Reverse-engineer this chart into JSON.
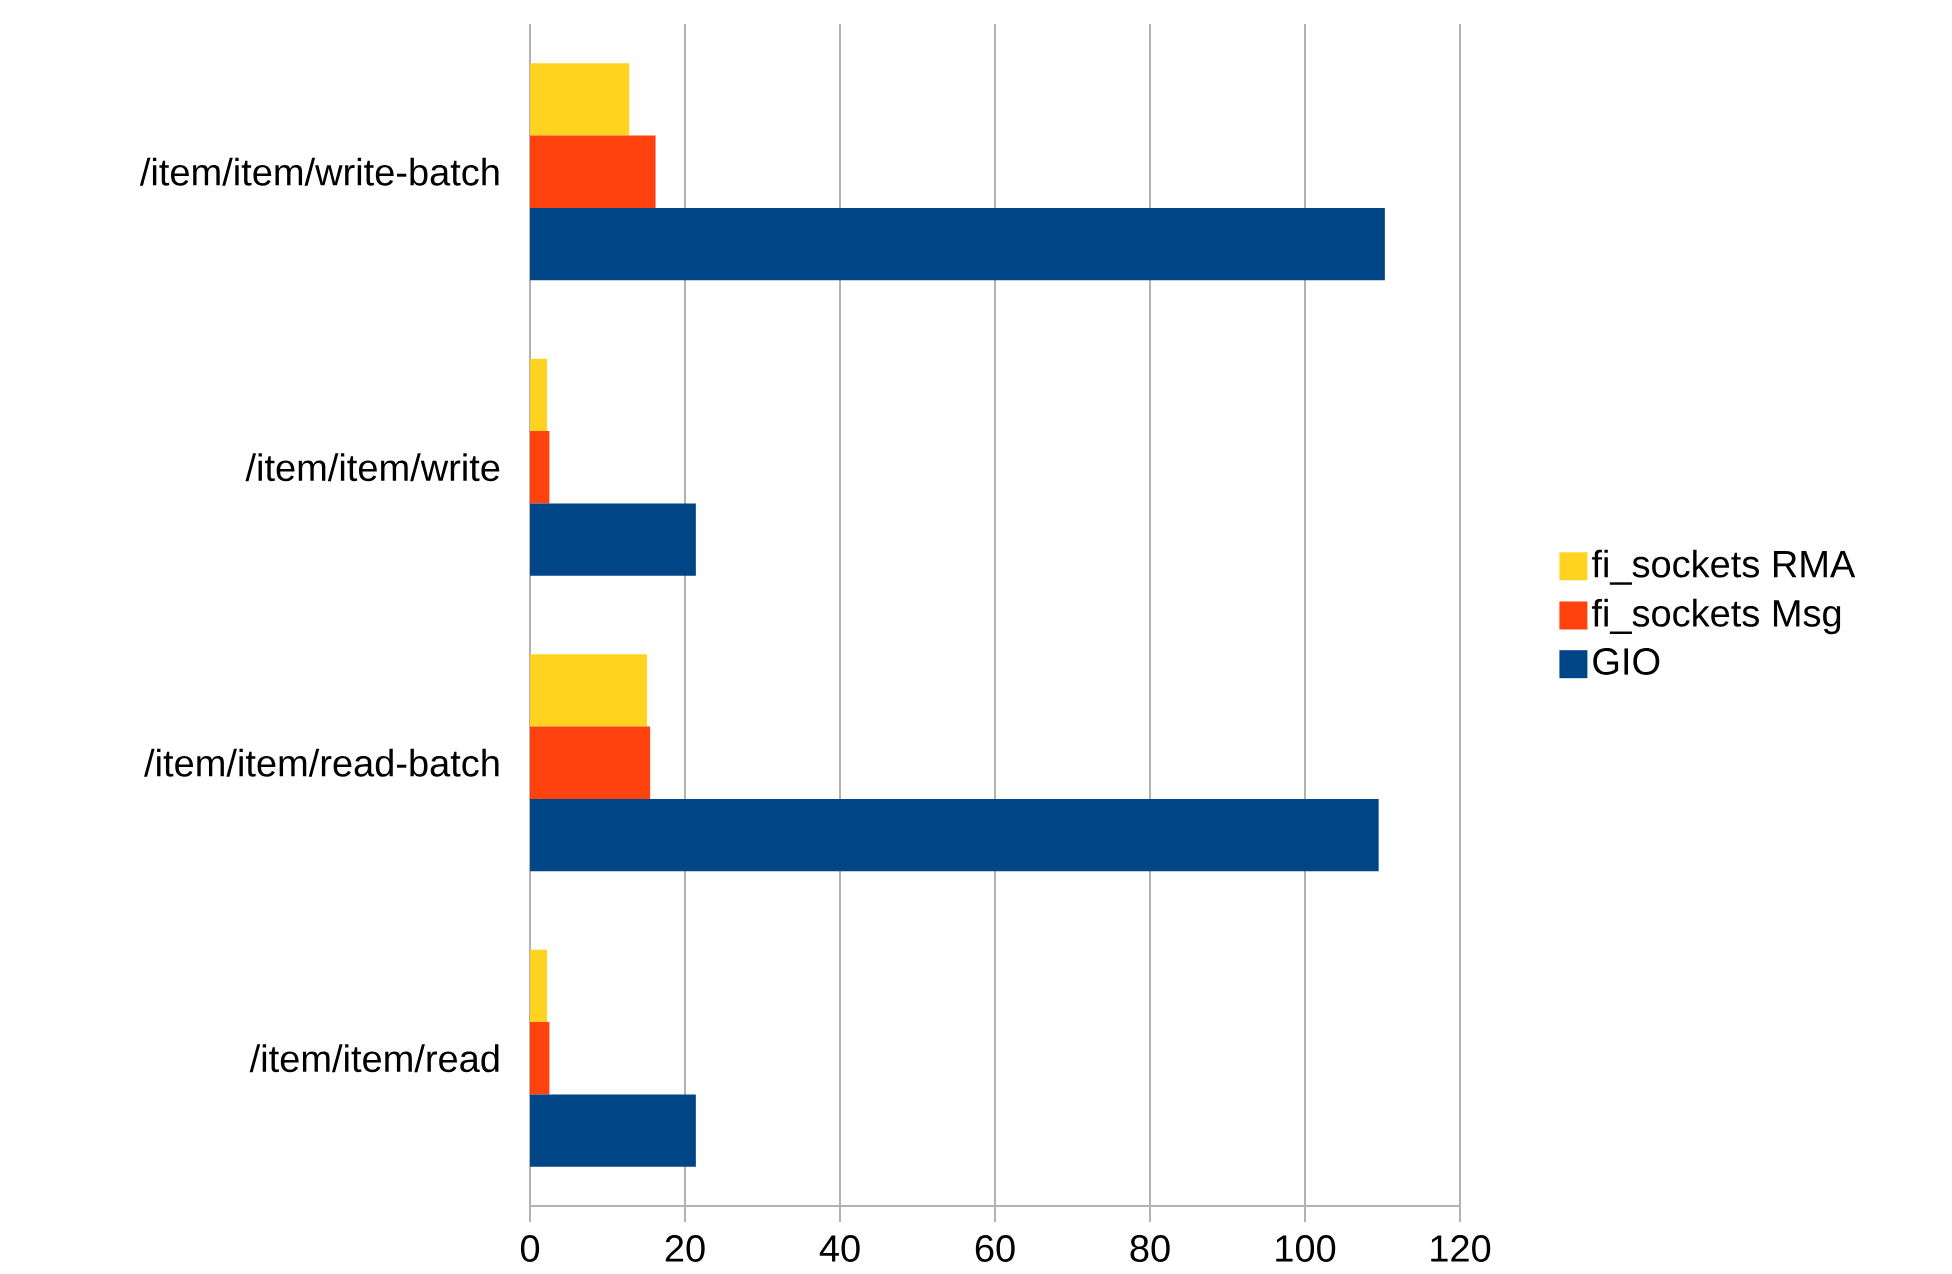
{
  "chart_data": {
    "type": "bar",
    "orientation": "horizontal",
    "categories": [
      "/item/item/write-batch",
      "/item/item/write",
      "/item/item/read-batch",
      "/item/item/read"
    ],
    "series": [
      {
        "name": "fi_sockets RMA",
        "color": "#ffd320",
        "values": [
          12.8,
          2.2,
          15.1,
          2.2
        ]
      },
      {
        "name": "fi_sockets Msg",
        "color": "#ff420e",
        "values": [
          16.2,
          2.5,
          15.5,
          2.5
        ]
      },
      {
        "name": "GIO",
        "color": "#004586",
        "values": [
          110.3,
          21.4,
          109.5,
          21.4
        ]
      }
    ],
    "xlim": [
      0,
      120
    ],
    "xticks": [
      0,
      20,
      40,
      60,
      80,
      100,
      120
    ],
    "grid": "x",
    "legend": "right"
  }
}
